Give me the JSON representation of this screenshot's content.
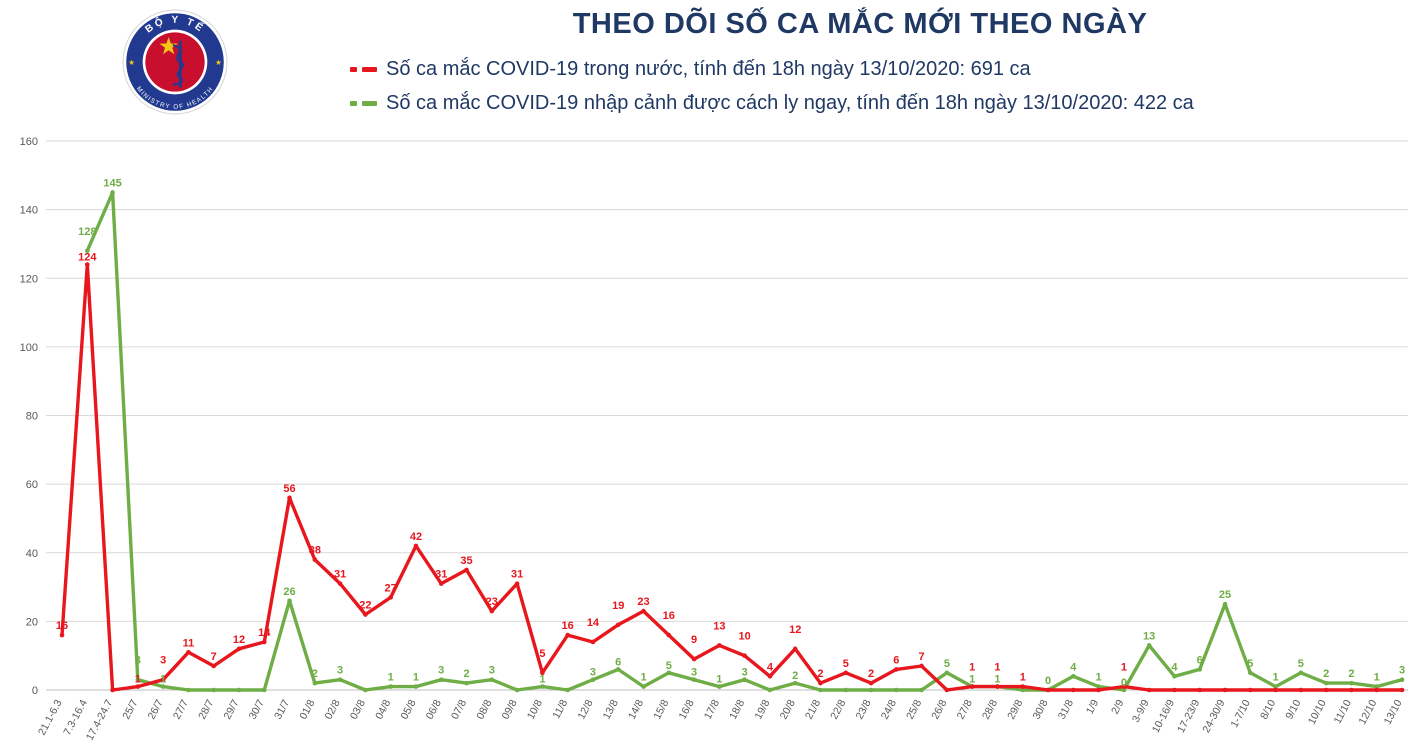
{
  "logo": {
    "top_text": "BỘ Y TẾ",
    "bottom_text": "MINISTRY OF HEALTH",
    "star": "★"
  },
  "header": {
    "title": "THEO DÕI SỐ CA MẮC MỚI THEO NGÀY",
    "legend": [
      {
        "label": "Số ca mắc COVID-19 trong nước, tính đến 18h ngày 13/10/2020: 691 ca",
        "color": "#e8161d"
      },
      {
        "label": "Số ca mắc COVID-19 nhập cảnh được cách ly ngay, tính đến 18h ngày 13/10/2020: 422 ca",
        "color": "#6fad46"
      }
    ]
  },
  "colors": {
    "domestic_red": "#e8161d",
    "imported_green": "#6fad46",
    "title_navy": "#1f3864",
    "axis_gray": "#595959",
    "grid_gray": "#d9d9d9"
  },
  "chart_data": {
    "type": "line",
    "title": "THEO DÕI SỐ CA MẮC MỚI THEO NGÀY",
    "xlabel": "",
    "ylabel": "",
    "ylim": [
      0,
      160
    ],
    "y_ticks": [
      0,
      20,
      40,
      60,
      80,
      100,
      120,
      140,
      160
    ],
    "grid": true,
    "legend_position": "top",
    "categories": [
      "21.1-6.3",
      "7.3-16.4",
      "17.4-24.7",
      "25/7",
      "26/7",
      "27/7",
      "28/7",
      "29/7",
      "30/7",
      "31/7",
      "01/8",
      "02/8",
      "03/8",
      "04/8",
      "05/8",
      "06/8",
      "07/8",
      "08/8",
      "09/8",
      "10/8",
      "11/8",
      "12/8",
      "13/8",
      "14/8",
      "15/8",
      "16/8",
      "17/8",
      "18/8",
      "19/8",
      "20/8",
      "21/8",
      "22/8",
      "23/8",
      "24/8",
      "25/8",
      "26/8",
      "27/8",
      "28/8",
      "29/8",
      "30/8",
      "31/8",
      "1/9",
      "2/9",
      "3-9/9",
      "10-16/9",
      "17-23/9",
      "24-30/9",
      "1-7/10",
      "8/10",
      "9/10",
      "10/10",
      "11/10",
      "12/10",
      "13/10"
    ],
    "series": [
      {
        "name": "Số ca mắc COVID-19 trong nước, tính đến 18h ngày 13/10/2020: 691 ca",
        "color": "#e8161d",
        "total": 691,
        "values": [
          16,
          124,
          0,
          1,
          3,
          11,
          7,
          12,
          14,
          56,
          38,
          31,
          22,
          27,
          42,
          31,
          35,
          23,
          31,
          5,
          16,
          14,
          19,
          23,
          16,
          9,
          13,
          10,
          4,
          12,
          2,
          5,
          2,
          6,
          7,
          0,
          1,
          1,
          1,
          0,
          0,
          0,
          1,
          0,
          0,
          0,
          0,
          0,
          0,
          0,
          0,
          0,
          0,
          0
        ]
      },
      {
        "name": "Số ca mắc COVID-19 nhập cảnh được cách ly ngay, tính đến 18h ngày 13/10/2020: 422 ca",
        "color": "#6fad46",
        "total": 422,
        "values": [
          null,
          128,
          145,
          3,
          1,
          0,
          0,
          0,
          0,
          26,
          2,
          3,
          0,
          1,
          1,
          3,
          2,
          3,
          0,
          1,
          0,
          3,
          6,
          1,
          5,
          3,
          1,
          3,
          0,
          2,
          0,
          0,
          0,
          0,
          0,
          5,
          1,
          1,
          0,
          0,
          4,
          1,
          0,
          13,
          4,
          6,
          25,
          5,
          1,
          5,
          2,
          2,
          1,
          3
        ],
        "zero_labels_at": [
          "30/8",
          "2/9"
        ]
      }
    ]
  }
}
